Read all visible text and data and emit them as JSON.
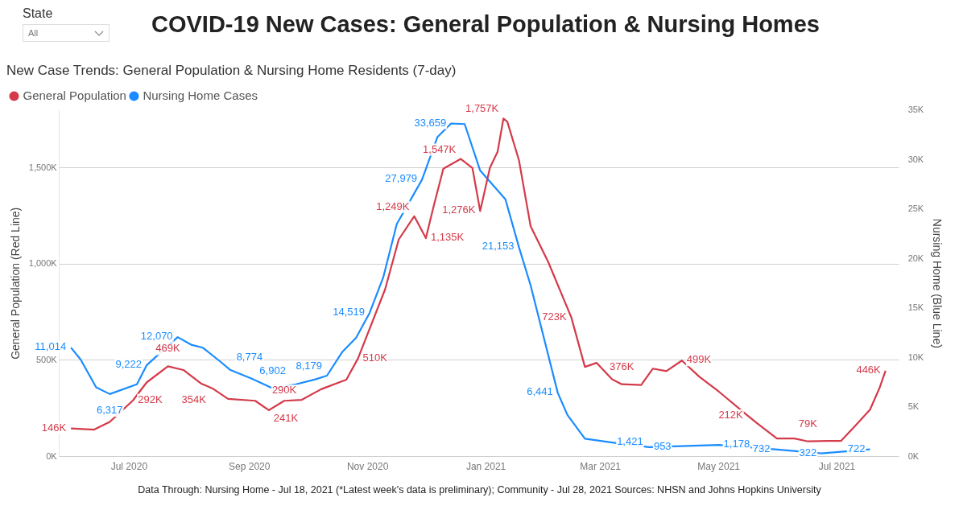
{
  "chart_data": {
    "type": "line",
    "title": "COVID-19 New Cases: General Population & Nursing Homes",
    "subtitle": "New Case Trends: General Population & Nursing Home Residents (7-day)",
    "ylabel": "General Population (Red Line)",
    "y2label": "Nursing Home (Blue Line)",
    "annotations": [
      "State",
      "All",
      "Data Through: Nursing Home - Jul 18, 2021 (*Latest week's data is preliminary); Community -  Jul 28, 2021 Sources: NHSN and Johns Hopkins University"
    ],
    "xlim": [
      "2020-05-26",
      "2021-08-02"
    ],
    "xticks": [
      {
        "value": "2020-07-01",
        "label": "Jul 2020"
      },
      {
        "value": "2020-09-01",
        "label": "Sep 2020"
      },
      {
        "value": "2020-11-01",
        "label": "Nov 2020"
      },
      {
        "value": "2021-01-01",
        "label": "Jan 2021"
      },
      {
        "value": "2021-03-01",
        "label": "Mar 2021"
      },
      {
        "value": "2021-05-01",
        "label": "May 2021"
      },
      {
        "value": "2021-07-01",
        "label": "Jul 2021"
      }
    ],
    "ylim": [
      0,
      1800000
    ],
    "yticks": [
      {
        "value": 0,
        "label": "0K"
      },
      {
        "value": 500000,
        "label": "500K"
      },
      {
        "value": 1000000,
        "label": "1,000K"
      },
      {
        "value": 1500000,
        "label": "1,500K"
      }
    ],
    "y2lim": [
      0,
      35000
    ],
    "y2ticks": [
      {
        "value": 0,
        "label": "0K"
      },
      {
        "value": 5000,
        "label": "5K"
      },
      {
        "value": 10000,
        "label": "10K"
      },
      {
        "value": 15000,
        "label": "15K"
      },
      {
        "value": 20000,
        "label": "20K"
      },
      {
        "value": 25000,
        "label": "25K"
      },
      {
        "value": 30000,
        "label": "30K"
      },
      {
        "value": 35000,
        "label": "35K"
      }
    ],
    "grid": "y",
    "legend": "top left",
    "series": [
      {
        "name": "General Population",
        "color": "#d43a49",
        "x": [
          "2020-06-01",
          "2020-06-13",
          "2020-06-21",
          "2020-07-03",
          "2020-07-10",
          "2020-07-21",
          "2020-07-29",
          "2020-08-07",
          "2020-08-13",
          "2020-08-21",
          "2020-09-04",
          "2020-09-11",
          "2020-09-19",
          "2020-09-28",
          "2020-10-08",
          "2020-10-21",
          "2020-10-27",
          "2020-11-10",
          "2020-11-17",
          "2020-11-25",
          "2020-12-01",
          "2020-12-05",
          "2020-12-10",
          "2020-12-19",
          "2020-12-25",
          "2020-12-29",
          "2021-01-03",
          "2021-01-07",
          "2021-01-10",
          "2021-01-12",
          "2021-01-18",
          "2021-01-24",
          "2021-02-02",
          "2021-02-14",
          "2021-02-21",
          "2021-02-27",
          "2021-03-07",
          "2021-03-12",
          "2021-03-22",
          "2021-03-28",
          "2021-04-04",
          "2021-04-12",
          "2021-04-21",
          "2021-05-01",
          "2021-05-16",
          "2021-05-21",
          "2021-05-31",
          "2021-06-09",
          "2021-06-16",
          "2021-06-27",
          "2021-07-03",
          "2021-07-11",
          "2021-07-18",
          "2021-07-23",
          "2021-07-26"
        ],
        "values": [
          146000,
          140000,
          180000,
          292000,
          385000,
          469000,
          450000,
          380000,
          354000,
          300000,
          290000,
          241000,
          290000,
          295000,
          350000,
          400000,
          510000,
          870000,
          1128000,
          1249000,
          1135000,
          1300000,
          1496000,
          1547000,
          1500000,
          1276000,
          1500000,
          1585000,
          1757000,
          1740000,
          1540000,
          1197000,
          1013000,
          723000,
          466000,
          487000,
          402000,
          376000,
          372000,
          457000,
          444000,
          499000,
          415000,
          338000,
          212000,
          171000,
          94000,
          94000,
          79000,
          81000,
          81000,
          167000,
          244000,
          359000,
          446000
        ],
        "value_labels": [
          "146K",
          null,
          null,
          "292K",
          null,
          "469K",
          null,
          null,
          "354K",
          null,
          null,
          "241K",
          "290K",
          null,
          null,
          null,
          "510K",
          null,
          null,
          "1,249K",
          "1,135K",
          null,
          null,
          "1,547K",
          null,
          "1,276K",
          null,
          null,
          "1,757K",
          null,
          null,
          null,
          null,
          "723K",
          null,
          null,
          null,
          "376K",
          null,
          null,
          null,
          "499K",
          null,
          null,
          "212K",
          null,
          null,
          null,
          "79K",
          null,
          null,
          null,
          null,
          null,
          "446K"
        ]
      },
      {
        "name": "Nursing Home Cases",
        "color": "#1a8cff",
        "axis": "y2",
        "x": [
          "2020-06-01",
          "2020-06-06",
          "2020-06-14",
          "2020-06-21",
          "2020-07-05",
          "2020-07-10",
          "2020-07-26",
          "2020-08-02",
          "2020-08-08",
          "2020-08-17",
          "2020-08-22",
          "2020-09-02",
          "2020-09-13",
          "2020-09-25",
          "2020-10-05",
          "2020-10-11",
          "2020-10-19",
          "2020-10-26",
          "2020-11-02",
          "2020-11-09",
          "2020-11-16",
          "2020-11-29",
          "2020-12-07",
          "2020-12-14",
          "2020-12-21",
          "2020-12-29",
          "2021-01-11",
          "2021-01-18",
          "2021-01-24",
          "2021-02-07",
          "2021-02-12",
          "2021-02-21",
          "2021-03-07",
          "2021-03-26",
          "2021-04-18",
          "2021-05-01",
          "2021-05-30",
          "2021-06-23",
          "2021-07-18"
        ],
        "values": [
          11014,
          9800,
          7000,
          6317,
          7300,
          9222,
          12070,
          11300,
          11000,
          9600,
          8774,
          7900,
          6902,
          7300,
          7800,
          8179,
          10600,
          12000,
          14519,
          18100,
          23500,
          27979,
          32300,
          33659,
          33600,
          28900,
          26000,
          21153,
          17300,
          6441,
          4200,
          1800,
          1421,
          953,
          1100,
          1178,
          732,
          322,
          722
        ],
        "value_labels": [
          "11,014",
          null,
          null,
          "6,317",
          null,
          "9,222",
          "12,070",
          null,
          null,
          null,
          "8,774",
          null,
          "6,902",
          null,
          null,
          "8,179",
          null,
          null,
          "14,519",
          null,
          null,
          "27,979",
          null,
          "33,659",
          null,
          null,
          null,
          "21,153",
          null,
          "6,441",
          null,
          null,
          "1,421",
          "953",
          null,
          "1,178",
          "732",
          "322",
          "722"
        ]
      }
    ]
  }
}
